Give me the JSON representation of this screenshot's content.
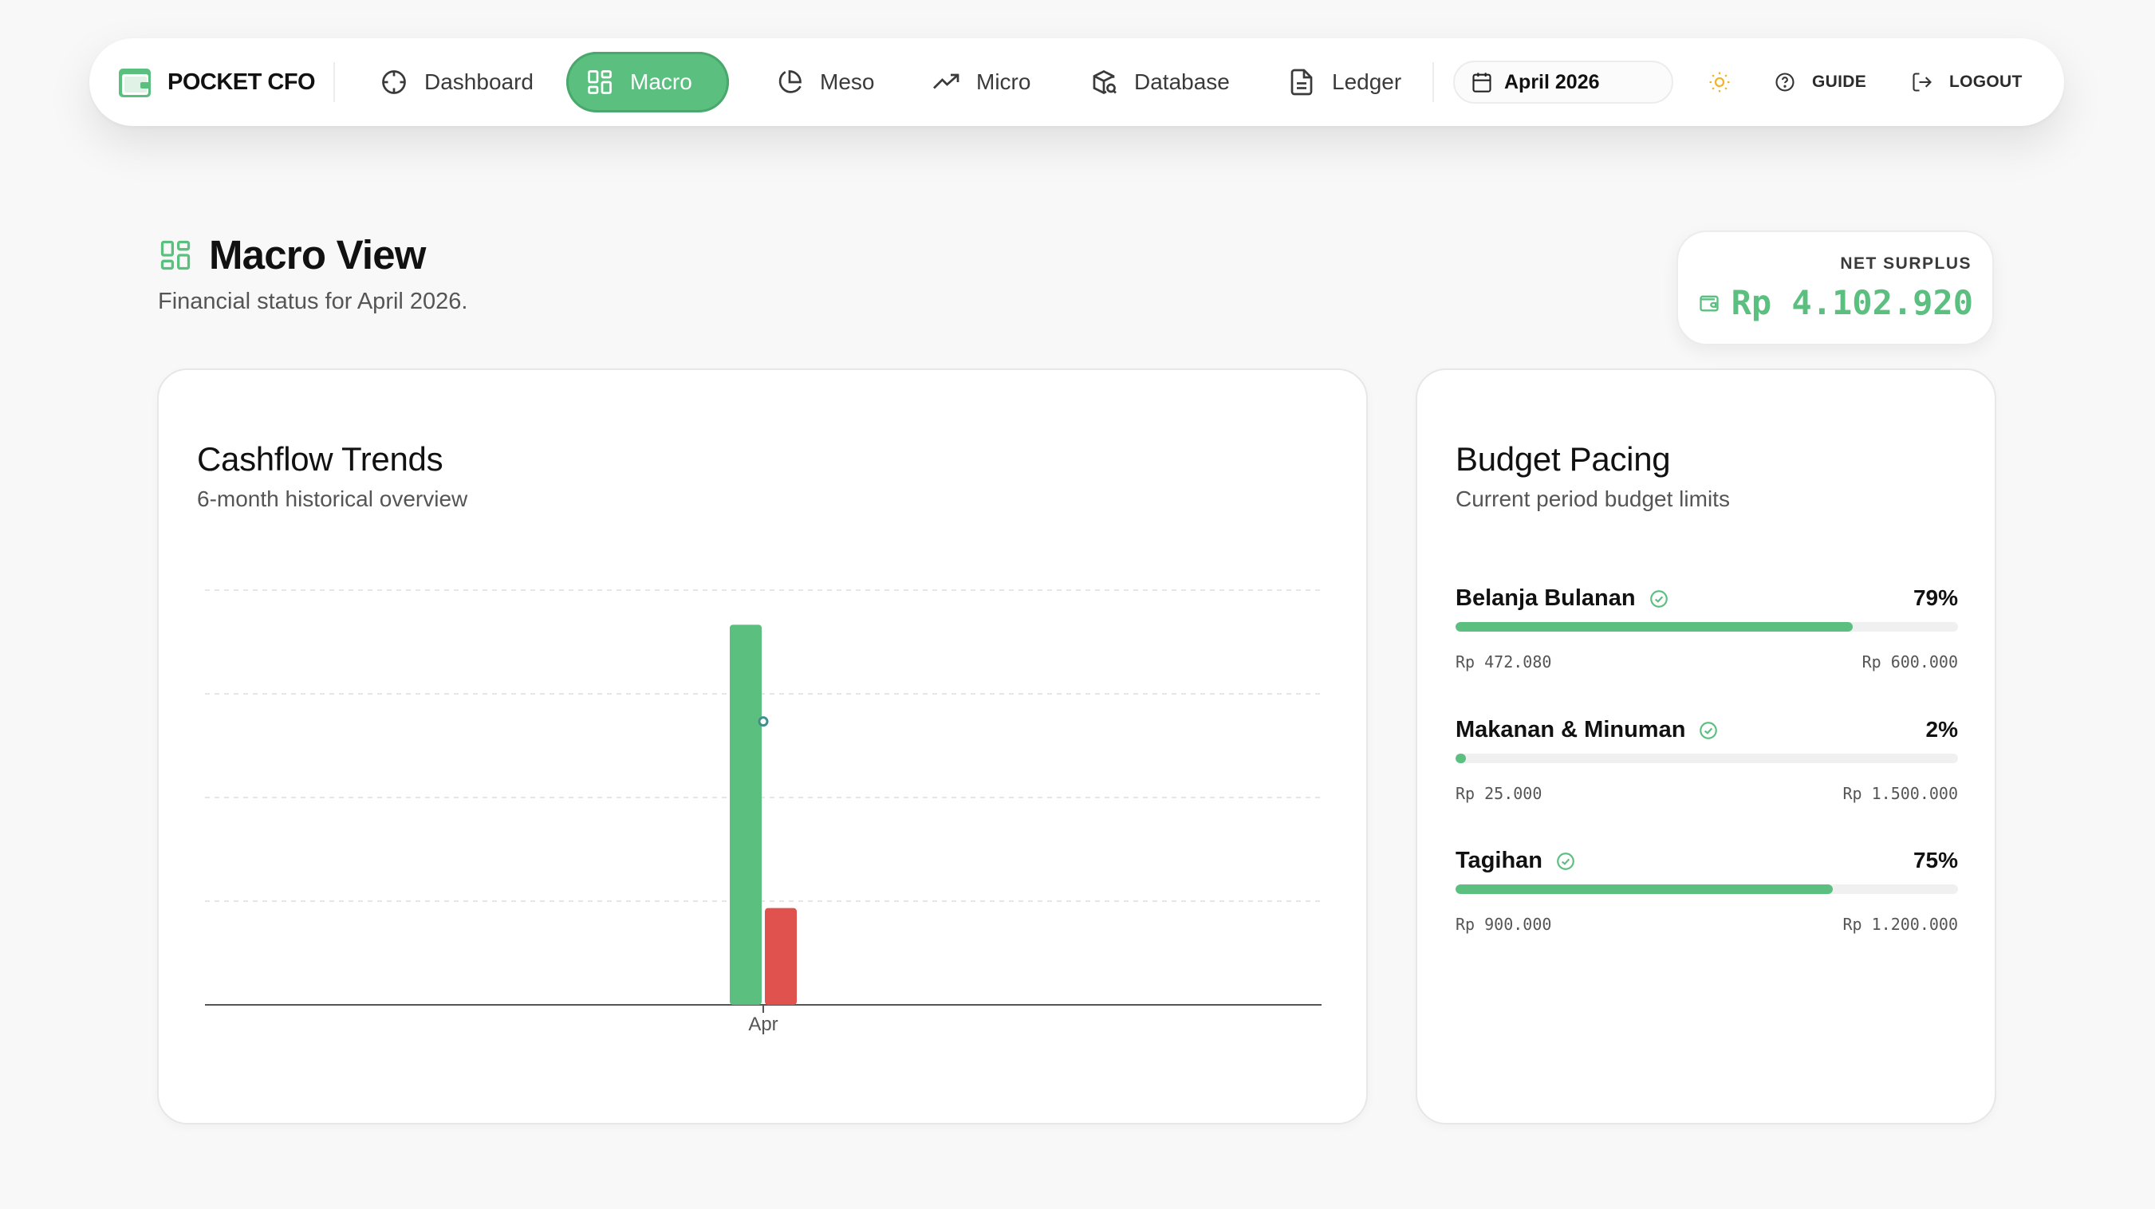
{
  "nav": {
    "brand": "POCKET CFO",
    "items": [
      {
        "label": "Dashboard",
        "icon": "crosshair-icon"
      },
      {
        "label": "Macro",
        "icon": "grid-icon",
        "active": true
      },
      {
        "label": "Meso",
        "icon": "pie-chart-icon"
      },
      {
        "label": "Micro",
        "icon": "trending-up-icon"
      },
      {
        "label": "Database",
        "icon": "package-search-icon"
      },
      {
        "label": "Ledger",
        "icon": "file-text-icon"
      }
    ],
    "date": "April 2026",
    "theme_icon": "sun-icon",
    "guide": "GUIDE",
    "logout": "LOGOUT"
  },
  "header": {
    "title": "Macro View",
    "subtitle": "Financial status for April 2026.",
    "net_surplus_label": "NET SURPLUS",
    "net_surplus_value": "Rp 4.102.920"
  },
  "cashflow": {
    "title": "Cashflow Trends",
    "subtitle": "6-month historical overview"
  },
  "chart_data": {
    "type": "bar",
    "categories": [
      "Apr"
    ],
    "series": [
      {
        "values": [
          5500000
        ],
        "color": "#5bbf80"
      },
      {
        "values": [
          1400000
        ],
        "color": "#e0524d"
      }
    ],
    "net_marker": [
      4100000
    ],
    "ylim": [
      0,
      6000000
    ],
    "grid": true
  },
  "budget": {
    "title": "Budget Pacing",
    "subtitle": "Current period budget limits",
    "items": [
      {
        "name": "Belanja Bulanan",
        "pct": "79%",
        "progress": 0.79,
        "spent": "Rp 472.080",
        "limit": "Rp 600.000"
      },
      {
        "name": "Makanan & Minuman",
        "pct": "2%",
        "progress": 0.02,
        "spent": "Rp 25.000",
        "limit": "Rp 1.500.000"
      },
      {
        "name": "Tagihan",
        "pct": "75%",
        "progress": 0.75,
        "spent": "Rp 900.000",
        "limit": "Rp 1.200.000"
      }
    ]
  },
  "colors": {
    "accent": "#5bbf80",
    "expense": "#e0524d",
    "sun": "#f0b429"
  }
}
